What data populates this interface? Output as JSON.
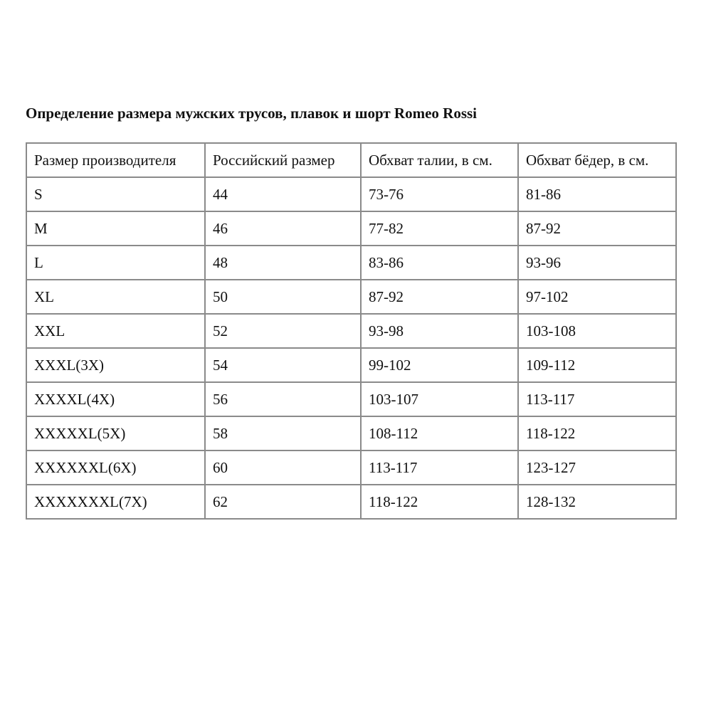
{
  "title": "Определение размера мужских трусов, плавок и шорт Romeo Rossi",
  "table": {
    "headers": [
      "Размер производителя",
      "Российский размер",
      "Обхват талии, в см.",
      "Обхват бёдер, в см."
    ],
    "rows": [
      [
        "S",
        "44",
        "73-76",
        "81-86"
      ],
      [
        "M",
        "46",
        "77-82",
        "87-92"
      ],
      [
        "L",
        "48",
        "83-86",
        "93-96"
      ],
      [
        "XL",
        "50",
        "87-92",
        "97-102"
      ],
      [
        "XXL",
        "52",
        "93-98",
        "103-108"
      ],
      [
        "XXXL(3X)",
        "54",
        "99-102",
        "109-112"
      ],
      [
        "XXXXL(4X)",
        "56",
        "103-107",
        "113-117"
      ],
      [
        "XXXXXL(5X)",
        "58",
        "108-112",
        "118-122"
      ],
      [
        "XXXXXXL(6X)",
        "60",
        "113-117",
        "123-127"
      ],
      [
        "XXXXXXXL(7X)",
        "62",
        "118-122",
        "128-132"
      ]
    ]
  }
}
